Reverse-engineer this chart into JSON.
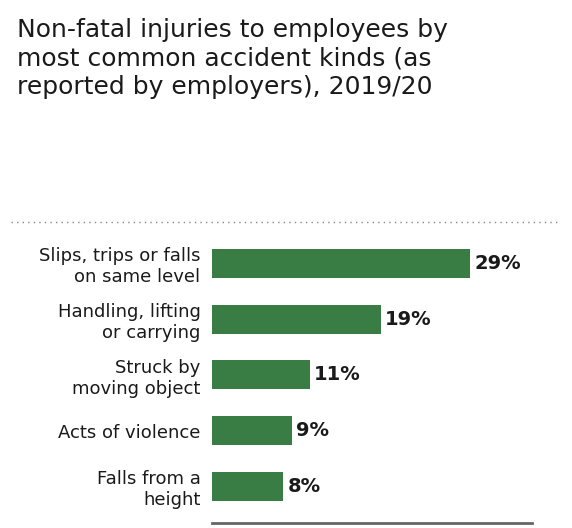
{
  "title_lines": [
    "Non-fatal injuries to employees by",
    "most common accident kinds (as",
    "reported by employers), 2019/20"
  ],
  "categories": [
    "Slips, trips or falls\non same level",
    "Handling, lifting\nor carrying",
    "Struck by\nmoving object",
    "Acts of violence",
    "Falls from a\nheight"
  ],
  "values": [
    29,
    19,
    11,
    9,
    8
  ],
  "bar_color": "#3a7d44",
  "label_color": "#1a1a1a",
  "title_color": "#1a1a1a",
  "background_color": "#ffffff",
  "title_fontsize": 18,
  "label_fontsize": 13,
  "value_fontsize": 14,
  "xlim": [
    0,
    36
  ],
  "bar_height": 0.52,
  "dot_line_color": "#888888",
  "spine_color": "#666666"
}
